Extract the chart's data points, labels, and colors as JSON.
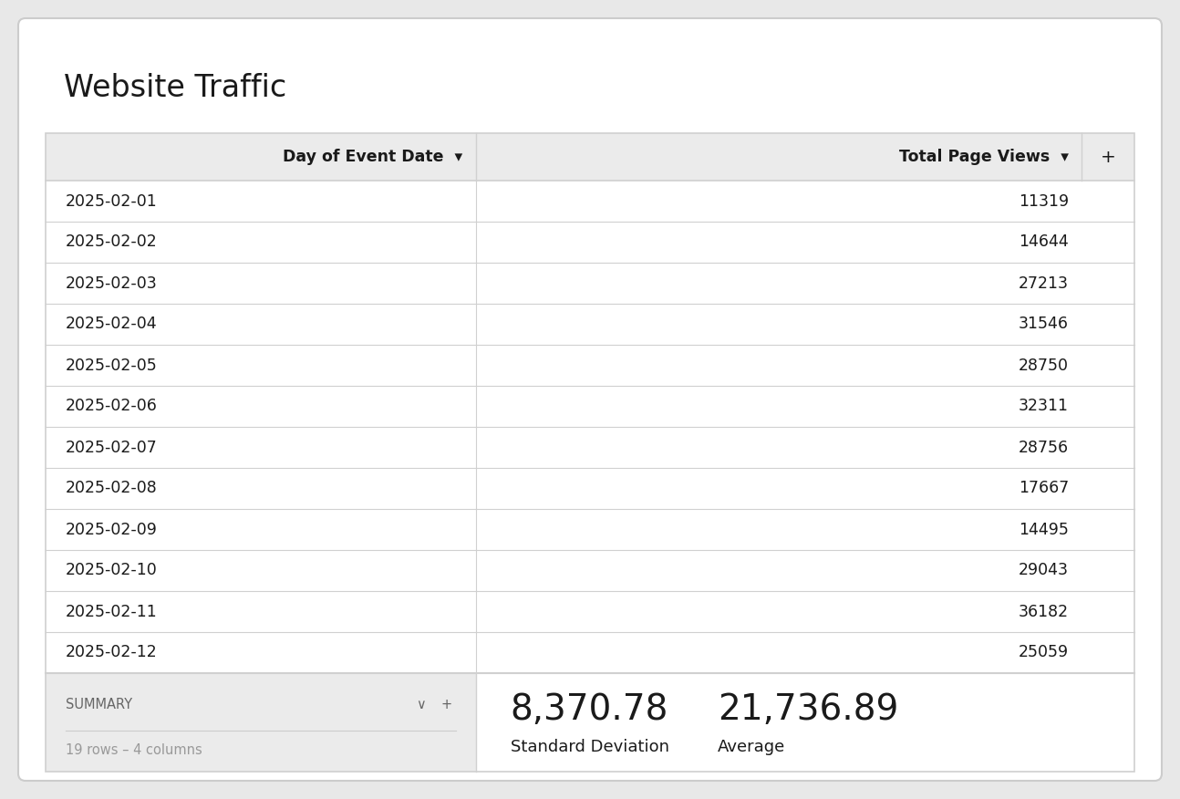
{
  "title": "Website Traffic",
  "col1_header": "Day of Event Date",
  "col2_header": "Total Page Views",
  "rows": [
    [
      "2025-02-01",
      "11319"
    ],
    [
      "2025-02-02",
      "14644"
    ],
    [
      "2025-02-03",
      "27213"
    ],
    [
      "2025-02-04",
      "31546"
    ],
    [
      "2025-02-05",
      "28750"
    ],
    [
      "2025-02-06",
      "32311"
    ],
    [
      "2025-02-07",
      "28756"
    ],
    [
      "2025-02-08",
      "17667"
    ],
    [
      "2025-02-09",
      "14495"
    ],
    [
      "2025-02-10",
      "29043"
    ],
    [
      "2025-02-11",
      "36182"
    ],
    [
      "2025-02-12",
      "25059"
    ]
  ],
  "summary_label": "SUMMARY",
  "summary_sub": "19 rows – 4 columns",
  "std_value": "8,370.78",
  "std_label": "Standard Deviation",
  "avg_value": "21,736.89",
  "avg_label": "Average",
  "bg_color": "#ffffff",
  "outer_bg": "#e8e8e8",
  "header_bg": "#ebebeb",
  "summary_bg": "#ebebeb",
  "border_color": "#d0d0d0",
  "text_color": "#1a1a1a",
  "gray_text": "#666666",
  "light_gray_text": "#999999",
  "title_fontsize": 24,
  "header_fontsize": 12.5,
  "row_fontsize": 12.5,
  "summary_fontsize": 10.5,
  "stat_value_fontsize": 28,
  "stat_label_fontsize": 13
}
